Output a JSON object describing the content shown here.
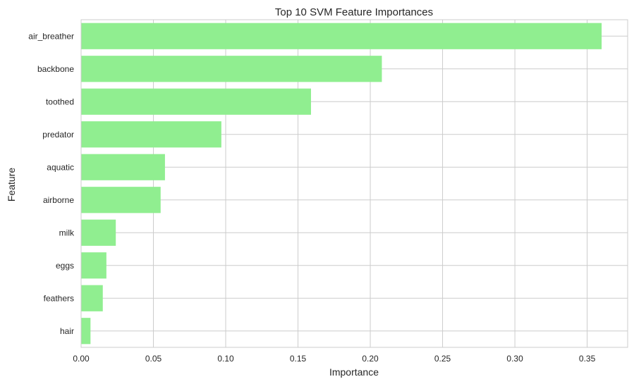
{
  "colors": {
    "bar": "#90ee90",
    "grid": "#cccccc",
    "frame": "#cccccc",
    "text": "#262626",
    "background": "#ffffff"
  },
  "chart_data": {
    "type": "bar",
    "orientation": "horizontal",
    "title": "Top 10 SVM Feature Importances",
    "xlabel": "Importance",
    "ylabel": "Feature",
    "categories": [
      "air_breather",
      "backbone",
      "toothed",
      "predator",
      "aquatic",
      "airborne",
      "milk",
      "eggs",
      "feathers",
      "hair"
    ],
    "values": [
      0.36,
      0.208,
      0.159,
      0.097,
      0.058,
      0.055,
      0.024,
      0.0175,
      0.015,
      0.0065
    ],
    "xlim": [
      0,
      0.378
    ],
    "xticks": [
      0.0,
      0.05,
      0.1,
      0.15,
      0.2,
      0.25,
      0.3,
      0.35
    ],
    "xtick_labels": [
      "0.00",
      "0.05",
      "0.10",
      "0.15",
      "0.20",
      "0.25",
      "0.30",
      "0.35"
    ],
    "grid": true
  }
}
